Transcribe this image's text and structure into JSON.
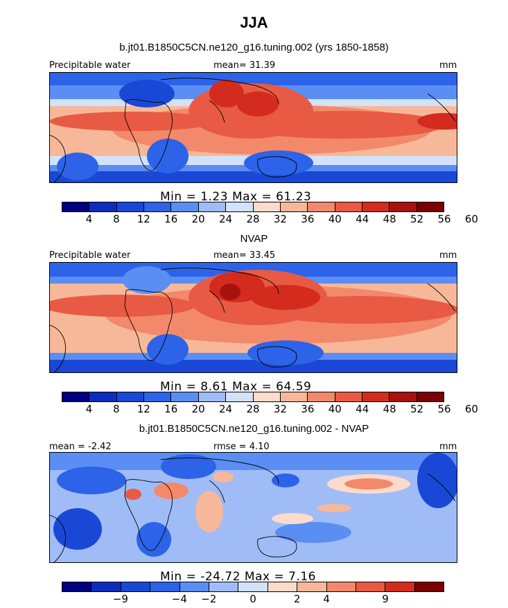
{
  "figure": {
    "season": "JJA",
    "colors": {
      "cbar13": [
        "#000080",
        "#0b2dbe",
        "#1a48d6",
        "#2c63e8",
        "#5a8ef2",
        "#9fbcf7",
        "#d3e2fb",
        "#fbdccb",
        "#f7b899",
        "#f2896a",
        "#e85a43",
        "#d32c1e",
        "#a8120e",
        "#7c0000"
      ],
      "cbar_diff": [
        "#000080",
        "#0b2dbe",
        "#1a48d6",
        "#2c63e8",
        "#5a8ef2",
        "#9fbcf7",
        "#d3e2fb",
        "#fbdccb",
        "#f7b899",
        "#f2896a",
        "#e85a43",
        "#d32c1e",
        "#7c0000"
      ]
    }
  },
  "chart_data": [
    {
      "type": "heatmap",
      "title": "b.jt01.B1850C5CN.ne120_g16.tuning.002 (yrs 1850-1858)",
      "left_label": "Precipitable water",
      "center_label": "mean=  31.39",
      "right_label": "mm",
      "min_max": "Min =    1.23 Max =   61.23",
      "colorbar_ticks": [
        "4",
        "8",
        "12",
        "16",
        "20",
        "24",
        "28",
        "32",
        "36",
        "40",
        "44",
        "48",
        "52",
        "56",
        "60"
      ]
    },
    {
      "type": "heatmap",
      "title": "NVAP",
      "left_label": "Precipitable water",
      "center_label": "mean=  33.45",
      "right_label": "mm",
      "min_max": "Min =    8.61 Max =   64.59",
      "colorbar_ticks": [
        "4",
        "8",
        "12",
        "16",
        "20",
        "24",
        "28",
        "32",
        "36",
        "40",
        "44",
        "48",
        "52",
        "56",
        "60"
      ]
    },
    {
      "type": "heatmap",
      "title": "b.jt01.B1850C5CN.ne120_g16.tuning.002 - NVAP",
      "left_label": "mean =  -2.42",
      "center_label": "rmse =   4.10",
      "right_label": "mm",
      "min_max": "Min = -24.72 Max =    7.16",
      "colorbar_ticks": [
        "-9",
        "-4",
        "-2",
        "0",
        "2",
        "4",
        "9"
      ]
    }
  ]
}
